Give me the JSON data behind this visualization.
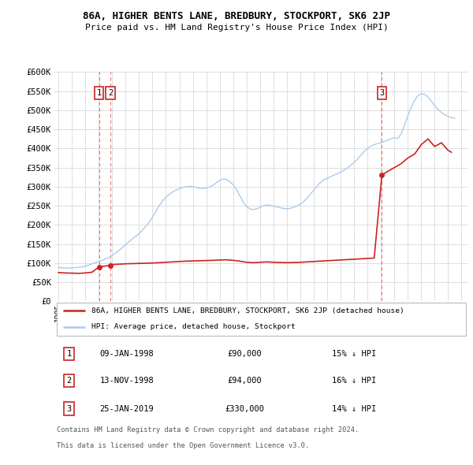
{
  "title": "86A, HIGHER BENTS LANE, BREDBURY, STOCKPORT, SK6 2JP",
  "subtitle": "Price paid vs. HM Land Registry's House Price Index (HPI)",
  "ylim": [
    0,
    600000
  ],
  "yticks": [
    0,
    50000,
    100000,
    150000,
    200000,
    250000,
    300000,
    350000,
    400000,
    450000,
    500000,
    550000,
    600000
  ],
  "ytick_labels": [
    "£0",
    "£50K",
    "£100K",
    "£150K",
    "£200K",
    "£250K",
    "£300K",
    "£350K",
    "£400K",
    "£450K",
    "£500K",
    "£550K",
    "£600K"
  ],
  "xlim_start": 1994.7,
  "xlim_end": 2025.5,
  "background_color": "#ffffff",
  "grid_color": "#dddddd",
  "hpi_color": "#aaccee",
  "property_color": "#cc2222",
  "transactions": [
    {
      "num": 1,
      "date": "09-JAN-1998",
      "price": 90000,
      "year": 1998.03,
      "pct": "15%",
      "dir": "↓"
    },
    {
      "num": 2,
      "date": "13-NOV-1998",
      "price": 94000,
      "year": 1998.87,
      "pct": "16%",
      "dir": "↓"
    },
    {
      "num": 3,
      "date": "25-JAN-2019",
      "price": 330000,
      "year": 2019.07,
      "pct": "14%",
      "dir": "↓"
    }
  ],
  "legend_property_label": "86A, HIGHER BENTS LANE, BREDBURY, STOCKPORT, SK6 2JP (detached house)",
  "legend_hpi_label": "HPI: Average price, detached house, Stockport",
  "footer_line1": "Contains HM Land Registry data © Crown copyright and database right 2024.",
  "footer_line2": "This data is licensed under the Open Government Licence v3.0.",
  "hpi_data_x": [
    1995.0,
    1995.25,
    1995.5,
    1995.75,
    1996.0,
    1996.25,
    1996.5,
    1996.75,
    1997.0,
    1997.25,
    1997.5,
    1997.75,
    1998.0,
    1998.25,
    1998.5,
    1998.75,
    1999.0,
    1999.25,
    1999.5,
    1999.75,
    2000.0,
    2000.25,
    2000.5,
    2000.75,
    2001.0,
    2001.25,
    2001.5,
    2001.75,
    2002.0,
    2002.25,
    2002.5,
    2002.75,
    2003.0,
    2003.25,
    2003.5,
    2003.75,
    2004.0,
    2004.25,
    2004.5,
    2004.75,
    2005.0,
    2005.25,
    2005.5,
    2005.75,
    2006.0,
    2006.25,
    2006.5,
    2006.75,
    2007.0,
    2007.25,
    2007.5,
    2007.75,
    2008.0,
    2008.25,
    2008.5,
    2008.75,
    2009.0,
    2009.25,
    2009.5,
    2009.75,
    2010.0,
    2010.25,
    2010.5,
    2010.75,
    2011.0,
    2011.25,
    2011.5,
    2011.75,
    2012.0,
    2012.25,
    2012.5,
    2012.75,
    2013.0,
    2013.25,
    2013.5,
    2013.75,
    2014.0,
    2014.25,
    2014.5,
    2014.75,
    2015.0,
    2015.25,
    2015.5,
    2015.75,
    2016.0,
    2016.25,
    2016.5,
    2016.75,
    2017.0,
    2017.25,
    2017.5,
    2017.75,
    2018.0,
    2018.25,
    2018.5,
    2018.75,
    2019.0,
    2019.25,
    2019.5,
    2019.75,
    2020.0,
    2020.25,
    2020.5,
    2020.75,
    2021.0,
    2021.25,
    2021.5,
    2021.75,
    2022.0,
    2022.25,
    2022.5,
    2022.75,
    2023.0,
    2023.25,
    2023.5,
    2023.75,
    2024.0,
    2024.25,
    2024.5
  ],
  "hpi_data_y": [
    88000,
    87500,
    87000,
    87000,
    87500,
    88000,
    89000,
    90000,
    92000,
    95000,
    98000,
    101000,
    104000,
    107000,
    111000,
    115000,
    120000,
    126000,
    133000,
    140000,
    148000,
    156000,
    163000,
    170000,
    177000,
    186000,
    196000,
    207000,
    220000,
    235000,
    250000,
    263000,
    272000,
    280000,
    286000,
    291000,
    295000,
    298000,
    300000,
    301000,
    300000,
    298000,
    296000,
    295000,
    296000,
    299000,
    304000,
    310000,
    316000,
    320000,
    319000,
    313000,
    305000,
    292000,
    276000,
    260000,
    248000,
    242000,
    240000,
    242000,
    246000,
    250000,
    252000,
    251000,
    249000,
    247000,
    245000,
    243000,
    242000,
    243000,
    246000,
    249000,
    254000,
    261000,
    270000,
    280000,
    291000,
    302000,
    311000,
    318000,
    322000,
    326000,
    330000,
    334000,
    338000,
    343000,
    349000,
    356000,
    363000,
    372000,
    382000,
    392000,
    400000,
    406000,
    410000,
    413000,
    415000,
    418000,
    422000,
    426000,
    428000,
    426000,
    438000,
    460000,
    485000,
    508000,
    526000,
    538000,
    543000,
    542000,
    535000,
    524000,
    512000,
    502000,
    494000,
    488000,
    484000,
    481000,
    479000
  ],
  "property_data_x": [
    1995.0,
    1995.5,
    1996.0,
    1996.5,
    1997.0,
    1997.5,
    1998.03,
    1998.87,
    1999.0,
    1999.5,
    2000.0,
    2000.5,
    2001.0,
    2001.5,
    2002.0,
    2002.5,
    2003.0,
    2003.5,
    2004.0,
    2004.5,
    2005.0,
    2005.5,
    2006.0,
    2006.5,
    2007.0,
    2007.5,
    2008.0,
    2008.5,
    2009.0,
    2009.5,
    2010.0,
    2010.5,
    2011.0,
    2011.5,
    2012.0,
    2012.5,
    2013.0,
    2013.5,
    2014.0,
    2014.5,
    2015.0,
    2015.5,
    2016.0,
    2016.5,
    2017.0,
    2017.5,
    2018.0,
    2018.5,
    2019.07,
    2019.5,
    2020.0,
    2020.5,
    2021.0,
    2021.5,
    2022.0,
    2022.5,
    2023.0,
    2023.5,
    2024.0,
    2024.25
  ],
  "property_data_y": [
    75000,
    74000,
    73500,
    73000,
    74000,
    76000,
    90000,
    94000,
    96000,
    97000,
    98000,
    98500,
    99000,
    99500,
    100000,
    101000,
    102000,
    103000,
    104000,
    105000,
    105500,
    106000,
    106500,
    107000,
    108000,
    108500,
    107000,
    105000,
    102000,
    101000,
    102000,
    103000,
    102000,
    101500,
    101000,
    101500,
    102000,
    103000,
    104000,
    105000,
    106000,
    107000,
    108000,
    109000,
    110000,
    111000,
    112000,
    113000,
    330000,
    340000,
    350000,
    360000,
    375000,
    385000,
    410000,
    425000,
    405000,
    415000,
    395000,
    390000
  ]
}
